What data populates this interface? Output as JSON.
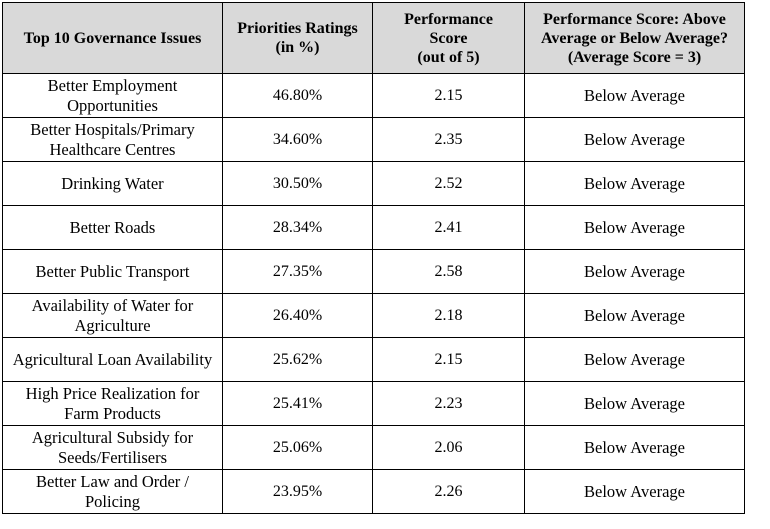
{
  "table": {
    "headers": [
      "Top 10 Governance Issues",
      "Priorities Ratings\n(in %)",
      "Performance\nScore\n(out of 5)",
      "Performance Score: Above\nAverage or Below Average?\n(Average Score = 3)"
    ],
    "rows": [
      {
        "issue": "Better Employment Opportunities",
        "rating": "46.80%",
        "score": "2.15",
        "assessment": "Below Average"
      },
      {
        "issue": "Better Hospitals/Primary Healthcare Centres",
        "rating": "34.60%",
        "score": "2.35",
        "assessment": "Below Average"
      },
      {
        "issue": "Drinking Water",
        "rating": "30.50%",
        "score": "2.52",
        "assessment": "Below Average"
      },
      {
        "issue": "Better Roads",
        "rating": "28.34%",
        "score": "2.41",
        "assessment": "Below Average"
      },
      {
        "issue": "Better Public Transport",
        "rating": "27.35%",
        "score": "2.58",
        "assessment": "Below Average"
      },
      {
        "issue": "Availability of Water for Agriculture",
        "rating": "26.40%",
        "score": "2.18",
        "assessment": "Below Average"
      },
      {
        "issue": "Agricultural Loan Availability",
        "rating": "25.62%",
        "score": "2.15",
        "assessment": "Below Average"
      },
      {
        "issue": "High Price Realization for Farm Products",
        "rating": "25.41%",
        "score": "2.23",
        "assessment": "Below Average"
      },
      {
        "issue": "Agricultural Subsidy for Seeds/Fertilisers",
        "rating": "25.06%",
        "score": "2.06",
        "assessment": "Below Average"
      },
      {
        "issue": "Better Law and Order / Policing",
        "rating": "23.95%",
        "score": "2.26",
        "assessment": "Below Average"
      }
    ]
  }
}
